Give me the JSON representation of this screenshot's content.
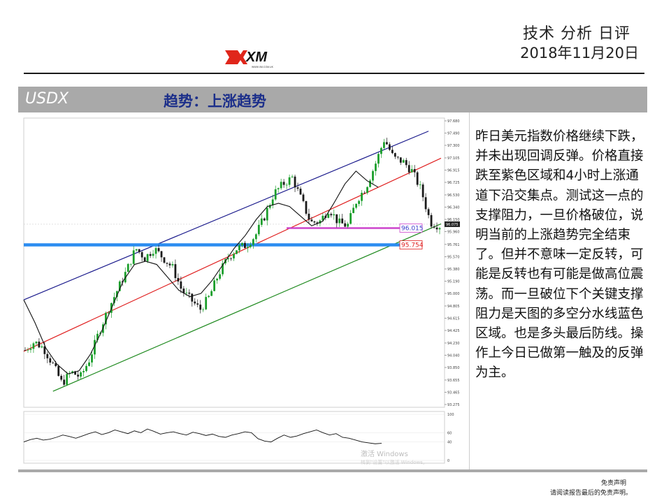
{
  "header": {
    "title": "技术 分析 日评",
    "date": "2018年11月20日",
    "logo_text": "XM",
    "logo_sub": "WWW.XM.COM.UK"
  },
  "bar": {
    "symbol": "USDX",
    "trend": "趋势：上涨趋势"
  },
  "chart_data": {
    "type": "line",
    "price_axis": {
      "ylim": [
        93.275,
        97.68
      ],
      "ticks": [
        "97.680",
        "97.490",
        "97.300",
        "97.105",
        "96.915",
        "96.725",
        "96.530",
        "96.340",
        "96.150",
        "95.960",
        "95.761",
        "95.570",
        "95.380",
        "95.190",
        "95.000",
        "94.805",
        "94.615",
        "94.425",
        "94.230",
        "94.040",
        "93.850",
        "93.655",
        "93.465",
        "93.275"
      ]
    },
    "current_price": "96.075",
    "levels": [
      {
        "label": "96.015",
        "value": 96.015,
        "color": "#cc44cc"
      },
      {
        "label": "95.754",
        "value": 95.754,
        "color": "#2b8cf0"
      }
    ],
    "channel_lines": [
      {
        "color": "#1a1a8c",
        "start": [
          0,
          94.9
        ],
        "end": [
          97,
          97.52
        ]
      },
      {
        "color": "#e02020",
        "start": [
          0,
          94.1
        ],
        "end": [
          100,
          97.1
        ]
      },
      {
        "color": "#1f8a1f",
        "start": [
          7,
          93.48
        ],
        "end": [
          100,
          96.08
        ]
      }
    ],
    "price_series": [
      94.12,
      94.25,
      94.15,
      93.9,
      93.6,
      93.78,
      93.7,
      93.98,
      94.4,
      94.75,
      95.05,
      95.35,
      95.7,
      95.55,
      95.7,
      95.55,
      95.4,
      95.05,
      94.9,
      94.75,
      94.95,
      95.3,
      95.55,
      95.7,
      95.75,
      95.9,
      96.2,
      96.55,
      96.7,
      96.8,
      96.45,
      96.1,
      96.12,
      96.32,
      96.1,
      96.05,
      96.45,
      96.65,
      97.0,
      97.4,
      97.1,
      97.05,
      96.9,
      96.6,
      96.1,
      96.05
    ],
    "ma_series": [
      94.9,
      94.55,
      94.15,
      93.9,
      93.75,
      93.8,
      94.05,
      94.4,
      94.8,
      95.2,
      95.45,
      95.5,
      95.45,
      95.25,
      95.05,
      94.95,
      95.0,
      95.2,
      95.45,
      95.7,
      95.9,
      96.15,
      96.35,
      96.4,
      96.35,
      96.2,
      96.05,
      96.12,
      96.4,
      96.7,
      96.9,
      96.75,
      96.65
    ],
    "oscillator": {
      "ticks": [
        "100",
        "60",
        "40",
        "0"
      ],
      "ylim": [
        0,
        100
      ],
      "values": [
        40,
        45,
        48,
        44,
        46,
        50,
        55,
        52,
        48,
        53,
        58,
        62,
        56,
        60,
        66,
        62,
        58,
        64,
        60,
        68,
        63,
        57,
        60,
        62,
        58,
        55,
        61,
        58,
        54,
        57,
        52,
        50,
        55,
        58,
        62,
        60,
        47,
        42,
        40,
        48,
        55,
        50,
        53,
        58,
        62,
        66,
        60,
        55,
        58,
        50,
        48,
        44,
        40,
        38,
        36,
        37
      ]
    },
    "watermark": [
      "激活 Windows",
      "转到\"设置\"以激活 Windows。"
    ]
  },
  "commentary": "昨日美元指数价格继续下跌，并未出现回调反弹。价格直接跌至紫色区域和4小时上涨通道下沿交集点。测试这一点的支撑阻力，一旦价格破位，说明当前的上涨趋势完全结束了。但并不意味一定反转，可能是反转也有可能是做高位震荡。而一旦破位下个关键支撑阻力是天图的多空分水线蓝色区域。也是多头最后防线。操作上今日已做第一触及的反弹为主。",
  "footer": {
    "disclaimer_title": "免责声明",
    "disclaimer_text": "请阅读报告最后的免责声明。"
  },
  "colors": {
    "candle_up": "#1a9e2a",
    "candle_down": "#1a1a1a",
    "ma": "#111111",
    "bar_gray": "#a9a9a9",
    "trend_text": "#1c2f8a",
    "logo_red": "#e0261b"
  }
}
